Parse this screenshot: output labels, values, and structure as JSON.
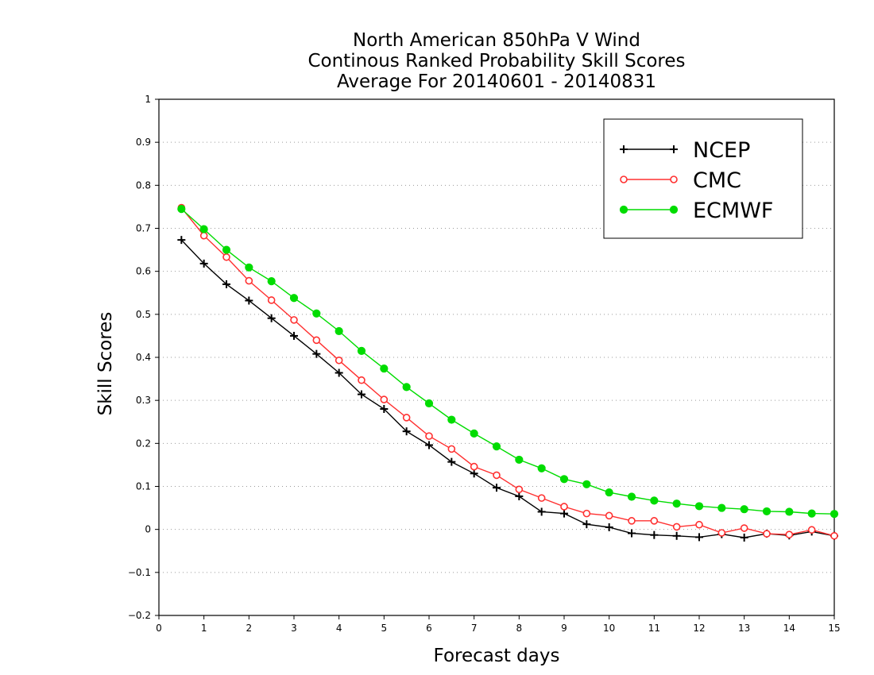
{
  "chart_data": {
    "type": "line",
    "title_lines": [
      "North American 850hPa V Wind",
      "Continous Ranked Probability Skill Scores",
      "Average For 20140601 - 20140831"
    ],
    "xlabel": "Forecast days",
    "ylabel": "Skill Scores",
    "xlim": [
      0,
      15
    ],
    "ylim": [
      -0.2,
      1
    ],
    "x_ticks": [
      0,
      1,
      2,
      3,
      4,
      5,
      6,
      7,
      8,
      9,
      10,
      11,
      12,
      13,
      14,
      15
    ],
    "y_ticks": [
      -0.2,
      -0.1,
      0,
      0.1,
      0.2,
      0.3,
      0.4,
      0.5,
      0.6,
      0.7,
      0.8,
      0.9,
      1
    ],
    "y_tick_labels": [
      "−0.2",
      "−0.1",
      "0",
      "0.1",
      "0.2",
      "0.3",
      "0.4",
      "0.5",
      "0.6",
      "0.7",
      "0.8",
      "0.9",
      "1"
    ],
    "grid": "horizontal dotted",
    "legend_position": "top-right",
    "x": [
      0.5,
      1,
      1.5,
      2,
      2.5,
      3,
      3.5,
      4,
      4.5,
      5,
      5.5,
      6,
      6.5,
      7,
      7.5,
      8,
      8.5,
      9,
      9.5,
      10,
      10.5,
      11,
      11.5,
      12,
      12.5,
      13,
      13.5,
      14,
      14.5,
      15
    ],
    "series": [
      {
        "name": "NCEP",
        "color": "#000000",
        "marker": "plus",
        "values": [
          0.673,
          0.618,
          0.57,
          0.532,
          0.491,
          0.45,
          0.408,
          0.364,
          0.314,
          0.28,
          0.228,
          0.196,
          0.157,
          0.13,
          0.097,
          0.077,
          0.041,
          0.037,
          0.012,
          0.005,
          -0.009,
          -0.013,
          -0.015,
          -0.018,
          -0.011,
          -0.019,
          -0.01,
          -0.014,
          -0.005,
          -0.015
        ]
      },
      {
        "name": "CMC",
        "color": "#ff3030",
        "marker": "open-circle",
        "values": [
          0.748,
          0.683,
          0.633,
          0.578,
          0.533,
          0.487,
          0.44,
          0.393,
          0.347,
          0.302,
          0.26,
          0.217,
          0.187,
          0.146,
          0.126,
          0.093,
          0.073,
          0.053,
          0.037,
          0.032,
          0.02,
          0.02,
          0.006,
          0.011,
          -0.008,
          0.003,
          -0.01,
          -0.012,
          -0.001,
          -0.015
        ]
      },
      {
        "name": "ECMWF",
        "color": "#00dc00",
        "marker": "filled-circle",
        "values": [
          0.745,
          0.698,
          0.65,
          0.609,
          0.577,
          0.538,
          0.502,
          0.461,
          0.415,
          0.374,
          0.331,
          0.293,
          0.255,
          0.223,
          0.193,
          0.162,
          0.142,
          0.117,
          0.105,
          0.086,
          0.076,
          0.067,
          0.06,
          0.054,
          0.05,
          0.047,
          0.042,
          0.041,
          0.037,
          0.036
        ]
      }
    ]
  }
}
